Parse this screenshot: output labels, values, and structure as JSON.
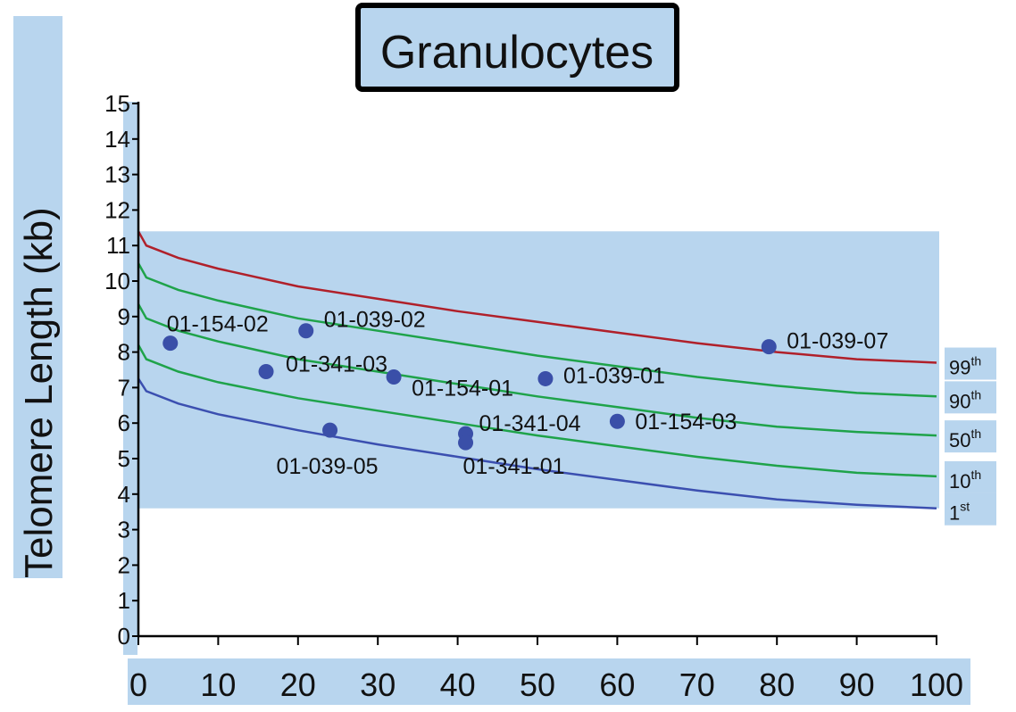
{
  "chart_data": {
    "type": "scatter",
    "title": "Granulocytes",
    "ylabel": "Telomere Length (kb)",
    "xlabel": "",
    "xlim": [
      0,
      100
    ],
    "ylim": [
      0,
      15
    ],
    "x_ticks": [
      0,
      10,
      20,
      30,
      40,
      50,
      60,
      70,
      80,
      90,
      100
    ],
    "y_ticks": [
      0,
      1,
      2,
      3,
      4,
      5,
      6,
      7,
      8,
      9,
      10,
      11,
      12,
      13,
      14,
      15
    ],
    "normal_band": [
      3.6,
      11.4
    ],
    "percentile_curves": [
      {
        "label": "99",
        "sup": "th",
        "color": "#b0202a",
        "points": [
          [
            0,
            11.4
          ],
          [
            1,
            11.0
          ],
          [
            5,
            10.65
          ],
          [
            10,
            10.35
          ],
          [
            20,
            9.85
          ],
          [
            30,
            9.5
          ],
          [
            40,
            9.15
          ],
          [
            50,
            8.85
          ],
          [
            60,
            8.55
          ],
          [
            70,
            8.25
          ],
          [
            80,
            8.0
          ],
          [
            90,
            7.8
          ],
          [
            100,
            7.7
          ]
        ]
      },
      {
        "label": "90",
        "sup": "th",
        "color": "#1fa34a",
        "points": [
          [
            0,
            10.5
          ],
          [
            1,
            10.1
          ],
          [
            5,
            9.75
          ],
          [
            10,
            9.45
          ],
          [
            20,
            8.95
          ],
          [
            30,
            8.6
          ],
          [
            40,
            8.25
          ],
          [
            50,
            7.9
          ],
          [
            60,
            7.6
          ],
          [
            70,
            7.3
          ],
          [
            80,
            7.05
          ],
          [
            90,
            6.85
          ],
          [
            100,
            6.75
          ]
        ]
      },
      {
        "label": "50",
        "sup": "th",
        "color": "#1fa34a",
        "points": [
          [
            0,
            9.35
          ],
          [
            1,
            8.95
          ],
          [
            5,
            8.6
          ],
          [
            10,
            8.3
          ],
          [
            20,
            7.8
          ],
          [
            30,
            7.45
          ],
          [
            40,
            7.1
          ],
          [
            50,
            6.75
          ],
          [
            60,
            6.45
          ],
          [
            70,
            6.15
          ],
          [
            80,
            5.9
          ],
          [
            90,
            5.75
          ],
          [
            100,
            5.65
          ]
        ]
      },
      {
        "label": "10",
        "sup": "th",
        "color": "#1fa34a",
        "points": [
          [
            0,
            8.2
          ],
          [
            1,
            7.8
          ],
          [
            5,
            7.45
          ],
          [
            10,
            7.15
          ],
          [
            20,
            6.7
          ],
          [
            30,
            6.35
          ],
          [
            40,
            6.0
          ],
          [
            50,
            5.65
          ],
          [
            60,
            5.35
          ],
          [
            70,
            5.05
          ],
          [
            80,
            4.8
          ],
          [
            90,
            4.6
          ],
          [
            100,
            4.5
          ]
        ]
      },
      {
        "label": "1",
        "sup": "st",
        "color": "#3b4fb0",
        "points": [
          [
            0,
            7.25
          ],
          [
            1,
            6.9
          ],
          [
            5,
            6.55
          ],
          [
            10,
            6.25
          ],
          [
            20,
            5.8
          ],
          [
            30,
            5.4
          ],
          [
            40,
            5.05
          ],
          [
            50,
            4.7
          ],
          [
            60,
            4.4
          ],
          [
            70,
            4.1
          ],
          [
            80,
            3.85
          ],
          [
            90,
            3.7
          ],
          [
            100,
            3.6
          ]
        ]
      }
    ],
    "points": [
      {
        "label": "01-154-02",
        "x": 4,
        "y": 8.25
      },
      {
        "label": "01-039-02",
        "x": 21,
        "y": 8.6
      },
      {
        "label": "01-341-03",
        "x": 16,
        "y": 7.45
      },
      {
        "label": "01-154-01",
        "x": 32,
        "y": 7.3
      },
      {
        "label": "01-039-01",
        "x": 51,
        "y": 7.25
      },
      {
        "label": "01-039-07",
        "x": 79,
        "y": 8.15
      },
      {
        "label": "01-154-03",
        "x": 60,
        "y": 6.05
      },
      {
        "label": "01-341-04",
        "x": 41,
        "y": 5.7
      },
      {
        "label": "01-341-01",
        "x": 41,
        "y": 5.45
      },
      {
        "label": "01-039-05",
        "x": 24,
        "y": 5.8
      }
    ],
    "point_color": "#3a4fa8",
    "band_color": "#b8d5ee",
    "legend": "none",
    "grid": false
  }
}
